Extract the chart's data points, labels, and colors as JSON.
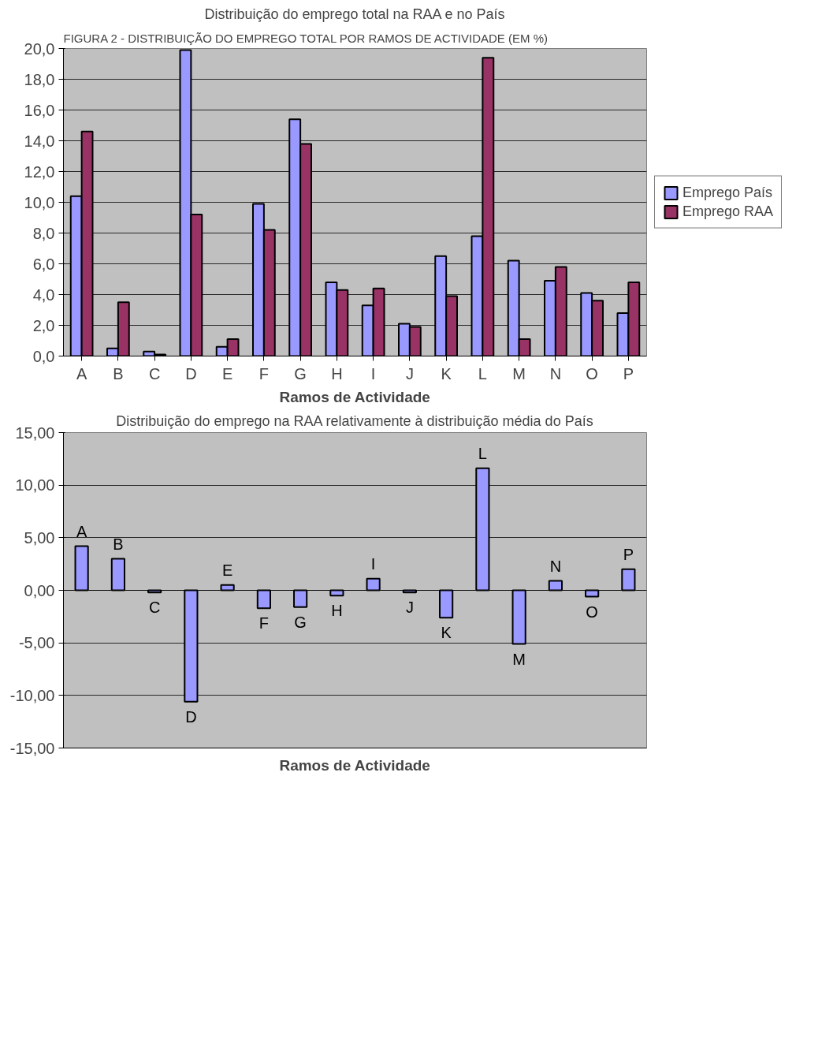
{
  "chart_data": [
    {
      "type": "bar",
      "title": "Distribuição do emprego total na RAA e no País",
      "annotations": [
        "FIGURA 2 - DISTRIBUIÇÃO DO EMPREGO TOTAL POR RAMOS DE ACTIVIDADE (EM %)"
      ],
      "xlabel": "Ramos de Actividade",
      "categories": [
        "A",
        "B",
        "C",
        "D",
        "E",
        "F",
        "G",
        "H",
        "I",
        "J",
        "K",
        "L",
        "M",
        "N",
        "O",
        "P"
      ],
      "series": [
        {
          "name": "Emprego País",
          "color": "#9999ff",
          "values": [
            10.4,
            0.5,
            0.3,
            19.9,
            0.6,
            9.9,
            15.4,
            4.8,
            3.3,
            2.1,
            6.5,
            7.8,
            6.2,
            4.9,
            4.1,
            2.8
          ]
        },
        {
          "name": "Emprego RAA",
          "color": "#993366",
          "values": [
            14.6,
            3.5,
            0.1,
            9.2,
            1.1,
            8.2,
            13.8,
            4.3,
            4.4,
            1.9,
            3.9,
            19.4,
            1.1,
            5.8,
            3.6,
            4.8
          ]
        }
      ],
      "ylim": [
        0,
        20
      ],
      "yticks": [
        {
          "value": 0,
          "label": "0,0"
        },
        {
          "value": 2,
          "label": "2,0"
        },
        {
          "value": 4,
          "label": "4,0"
        },
        {
          "value": 6,
          "label": "6,0"
        },
        {
          "value": 8,
          "label": "8,0"
        },
        {
          "value": 10,
          "label": "10,0"
        },
        {
          "value": 12,
          "label": "12,0"
        },
        {
          "value": 14,
          "label": "14,0"
        },
        {
          "value": 16,
          "label": "16,0"
        },
        {
          "value": 18,
          "label": "18,0"
        },
        {
          "value": 20,
          "label": "20,0"
        }
      ],
      "grid": "y",
      "legend": "right"
    },
    {
      "type": "bar",
      "title": "Distribuição do emprego na RAA relativamente à distribuição média do País",
      "xlabel": "Ramos de Actividade",
      "categories": [
        "A",
        "B",
        "C",
        "D",
        "E",
        "F",
        "G",
        "H",
        "I",
        "J",
        "K",
        "L",
        "M",
        "N",
        "O",
        "P"
      ],
      "series": [
        {
          "color": "#9999ff",
          "values": [
            4.2,
            3.0,
            -0.2,
            -10.6,
            0.5,
            -1.7,
            -1.6,
            -0.5,
            1.1,
            -0.2,
            -2.6,
            11.6,
            -5.1,
            0.9,
            -0.6,
            2.0
          ]
        }
      ],
      "ylim": [
        -15,
        15
      ],
      "yticks": [
        {
          "value": -15,
          "label": "-15,00"
        },
        {
          "value": -10,
          "label": "-10,00"
        },
        {
          "value": -5,
          "label": "-5,00"
        },
        {
          "value": 0,
          "label": "0,00"
        },
        {
          "value": 5,
          "label": "5,00"
        },
        {
          "value": 10,
          "label": "10,00"
        },
        {
          "value": 15,
          "label": "15,00"
        }
      ],
      "grid": "y",
      "tick_labels": "y"
    }
  ]
}
